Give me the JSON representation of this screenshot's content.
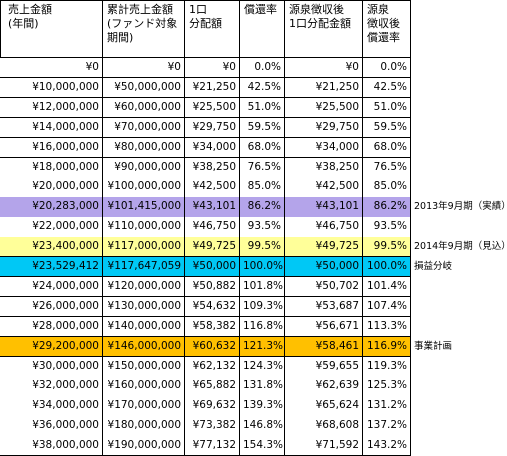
{
  "table": {
    "header": [
      "売上金額\n(年間)",
      "累計売上金額\n(ファンド対象期間)",
      "1口\n分配額",
      "償還率",
      "源泉徴収後\n1口分配金額",
      "源泉\n徴収後\n償還率"
    ],
    "rows": [
      {
        "cells": [
          "¥0",
          "¥0",
          "¥0",
          "0.0%",
          "¥0",
          "0.0%"
        ]
      },
      {
        "cells": [
          "¥10,000,000",
          "¥50,000,000",
          "¥21,250",
          "42.5%",
          "¥21,250",
          "42.5%"
        ]
      },
      {
        "cells": [
          "¥12,000,000",
          "¥60,000,000",
          "¥25,500",
          "51.0%",
          "¥25,500",
          "51.0%"
        ]
      },
      {
        "cells": [
          "¥14,000,000",
          "¥70,000,000",
          "¥29,750",
          "59.5%",
          "¥29,750",
          "59.5%"
        ]
      },
      {
        "cells": [
          "¥16,000,000",
          "¥80,000,000",
          "¥34,000",
          "68.0%",
          "¥34,000",
          "68.0%"
        ]
      },
      {
        "cells": [
          "¥18,000,000",
          "¥90,000,000",
          "¥38,250",
          "76.5%",
          "¥38,250",
          "76.5%"
        ]
      },
      {
        "cells": [
          "¥20,000,000",
          "¥100,000,000",
          "¥42,500",
          "85.0%",
          "¥42,500",
          "85.0%"
        ]
      },
      {
        "cells": [
          "¥20,283,000",
          "¥101,415,000",
          "¥43,101",
          "86.2%",
          "¥43,101",
          "86.2%"
        ],
        "note": "2013年9月期（実績）",
        "highlight": "#b4a4ea"
      },
      {
        "cells": [
          "¥22,000,000",
          "¥110,000,000",
          "¥46,750",
          "93.5%",
          "¥46,750",
          "93.5%"
        ]
      },
      {
        "cells": [
          "¥23,400,000",
          "¥117,000,000",
          "¥49,725",
          "99.5%",
          "¥49,725",
          "99.5%"
        ],
        "note": "2014年9月期（見込）",
        "highlight": "#ffff99"
      },
      {
        "cells": [
          "¥23,529,412",
          "¥117,647,059",
          "¥50,000",
          "100.0%",
          "¥50,000",
          "100.0%"
        ],
        "note": "損益分岐",
        "highlight": "#00c8f5"
      },
      {
        "cells": [
          "¥24,000,000",
          "¥120,000,000",
          "¥50,882",
          "101.8%",
          "¥50,702",
          "101.4%"
        ]
      },
      {
        "cells": [
          "¥26,000,000",
          "¥130,000,000",
          "¥54,632",
          "109.3%",
          "¥53,687",
          "107.4%"
        ]
      },
      {
        "cells": [
          "¥28,000,000",
          "¥140,000,000",
          "¥58,382",
          "116.8%",
          "¥56,671",
          "113.3%"
        ]
      },
      {
        "cells": [
          "¥29,200,000",
          "¥146,000,000",
          "¥60,632",
          "121.3%",
          "¥58,461",
          "116.9%"
        ],
        "note": "事業計画",
        "highlight": "#ffc000"
      },
      {
        "cells": [
          "¥30,000,000",
          "¥150,000,000",
          "¥62,132",
          "124.3%",
          "¥59,655",
          "119.3%"
        ]
      },
      {
        "cells": [
          "¥32,000,000",
          "¥160,000,000",
          "¥65,882",
          "131.8%",
          "¥62,639",
          "125.3%"
        ]
      },
      {
        "cells": [
          "¥34,000,000",
          "¥170,000,000",
          "¥69,632",
          "139.3%",
          "¥65,624",
          "131.2%"
        ]
      },
      {
        "cells": [
          "¥36,000,000",
          "¥180,000,000",
          "¥73,382",
          "146.8%",
          "¥68,608",
          "137.2%"
        ]
      },
      {
        "cells": [
          "¥38,000,000",
          "¥190,000,000",
          "¥77,132",
          "154.3%",
          "¥71,592",
          "143.2%"
        ]
      }
    ]
  }
}
